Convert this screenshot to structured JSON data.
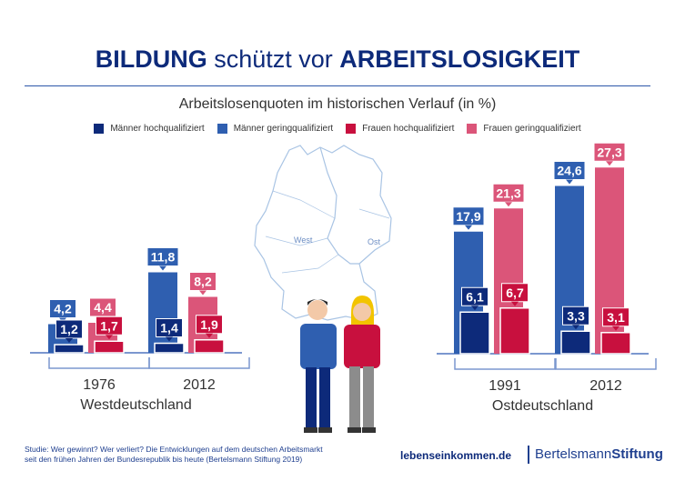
{
  "title": {
    "part1": "BILDUNG",
    "part2": " schützt vor ",
    "part3": "ARBEITSLOSIGKEIT"
  },
  "subtitle": "Arbeitslosenquoten im historischen Verlauf (in %)",
  "legend": [
    {
      "label": "Männer hochqualifiziert",
      "color": "#0d2a7a"
    },
    {
      "label": "Männer geringqualifiziert",
      "color": "#2f5fb0"
    },
    {
      "label": "Frauen hochqualifiziert",
      "color": "#c8103e"
    },
    {
      "label": "Frauen geringqualifiziert",
      "color": "#db5579"
    }
  ],
  "map": {
    "west": "West",
    "ost": "Ost"
  },
  "chart_data": [
    {
      "type": "bar",
      "region": "Westdeutschland",
      "categories": [
        "1976",
        "2012"
      ],
      "series": [
        {
          "name": "Männer geringqualifiziert",
          "values": [
            4.2,
            11.8
          ],
          "labels": [
            "4,2",
            "11,8"
          ]
        },
        {
          "name": "Männer hochqualifiziert",
          "values": [
            1.2,
            1.4
          ],
          "labels": [
            "1,2",
            "1,4"
          ]
        },
        {
          "name": "Frauen geringqualifiziert",
          "values": [
            4.4,
            8.2
          ],
          "labels": [
            "4,4",
            "8,2"
          ]
        },
        {
          "name": "Frauen hochqualifiziert",
          "values": [
            1.7,
            1.9
          ],
          "labels": [
            "1,7",
            "1,9"
          ]
        }
      ],
      "ylabel": "%"
    },
    {
      "type": "bar",
      "region": "Ostdeutschland",
      "categories": [
        "1991",
        "2012"
      ],
      "series": [
        {
          "name": "Männer geringqualifiziert",
          "values": [
            17.9,
            24.6
          ],
          "labels": [
            "17,9",
            "24,6"
          ]
        },
        {
          "name": "Männer hochqualifiziert",
          "values": [
            6.1,
            3.3
          ],
          "labels": [
            "6,1",
            "3,3"
          ]
        },
        {
          "name": "Frauen geringqualifiziert",
          "values": [
            21.3,
            27.3
          ],
          "labels": [
            "21,3",
            "27,3"
          ]
        },
        {
          "name": "Frauen hochqualifiziert",
          "values": [
            6.7,
            3.1
          ],
          "labels": [
            "6,7",
            "3,1"
          ]
        }
      ],
      "ylabel": "%"
    }
  ],
  "footer": {
    "study1": "Studie: Wer gewinnt? Wer verliert? Die Entwicklungen auf dem deutschen Arbeitsmarkt",
    "study2": "seit den frühen Jahren der Bundesrepublik bis heute (Bertelsmann Stiftung 2019)",
    "site": "lebenseinkommen.de",
    "brand1": "Bertelsmann",
    "brand2": "Stiftung"
  }
}
